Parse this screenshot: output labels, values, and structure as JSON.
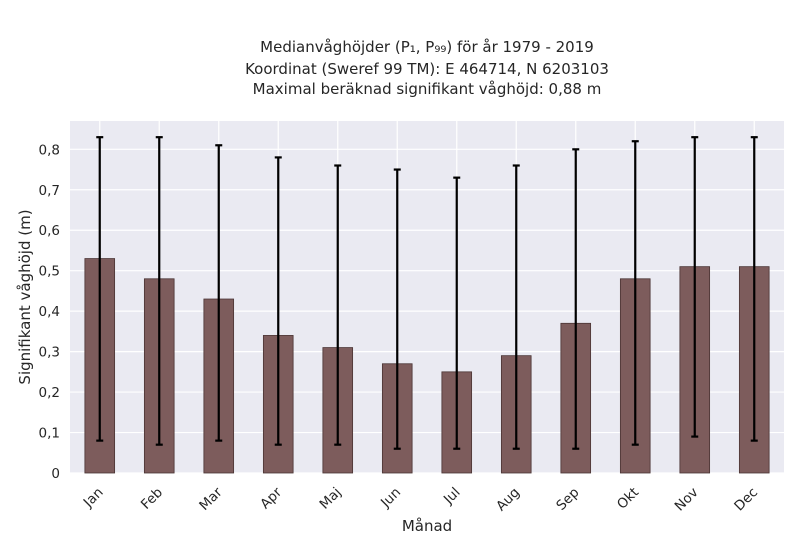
{
  "chart_data": {
    "type": "bar",
    "title_lines": [
      "Medianvåghöjder (P₁, P₉₉) för år 1979 - 2019",
      "Koordinat (Sweref 99 TM): E 464714, N 6203103",
      "Maximal beräknad signifikant våghöjd: 0,88 m"
    ],
    "xlabel": "Månad",
    "ylabel": "Signifikant våghöjd (m)",
    "categories": [
      "Jan",
      "Feb",
      "Mar",
      "Apr",
      "Maj",
      "Jun",
      "Jul",
      "Aug",
      "Sep",
      "Okt",
      "Nov",
      "Dec"
    ],
    "values": [
      0.53,
      0.48,
      0.43,
      0.34,
      0.31,
      0.27,
      0.25,
      0.29,
      0.37,
      0.48,
      0.51,
      0.51
    ],
    "error_low": [
      0.08,
      0.07,
      0.08,
      0.07,
      0.07,
      0.06,
      0.06,
      0.06,
      0.06,
      0.07,
      0.09,
      0.08
    ],
    "error_high": [
      0.83,
      0.83,
      0.81,
      0.78,
      0.76,
      0.75,
      0.73,
      0.76,
      0.8,
      0.82,
      0.83,
      0.83
    ],
    "ylim": [
      0,
      0.87
    ],
    "yticks": [
      0,
      0.1,
      0.2,
      0.3,
      0.4,
      0.5,
      0.6,
      0.7,
      0.8
    ],
    "ytick_labels": [
      "0",
      "0,1",
      "0,2",
      "0,3",
      "0,4",
      "0,5",
      "0,6",
      "0,7",
      "0,8"
    ],
    "grid": true,
    "colors": {
      "bar": "#7d5c5c",
      "bar_edge": "#4a3434",
      "error": "#000000",
      "background": "#eaeaf2",
      "grid": "#ffffff"
    }
  }
}
